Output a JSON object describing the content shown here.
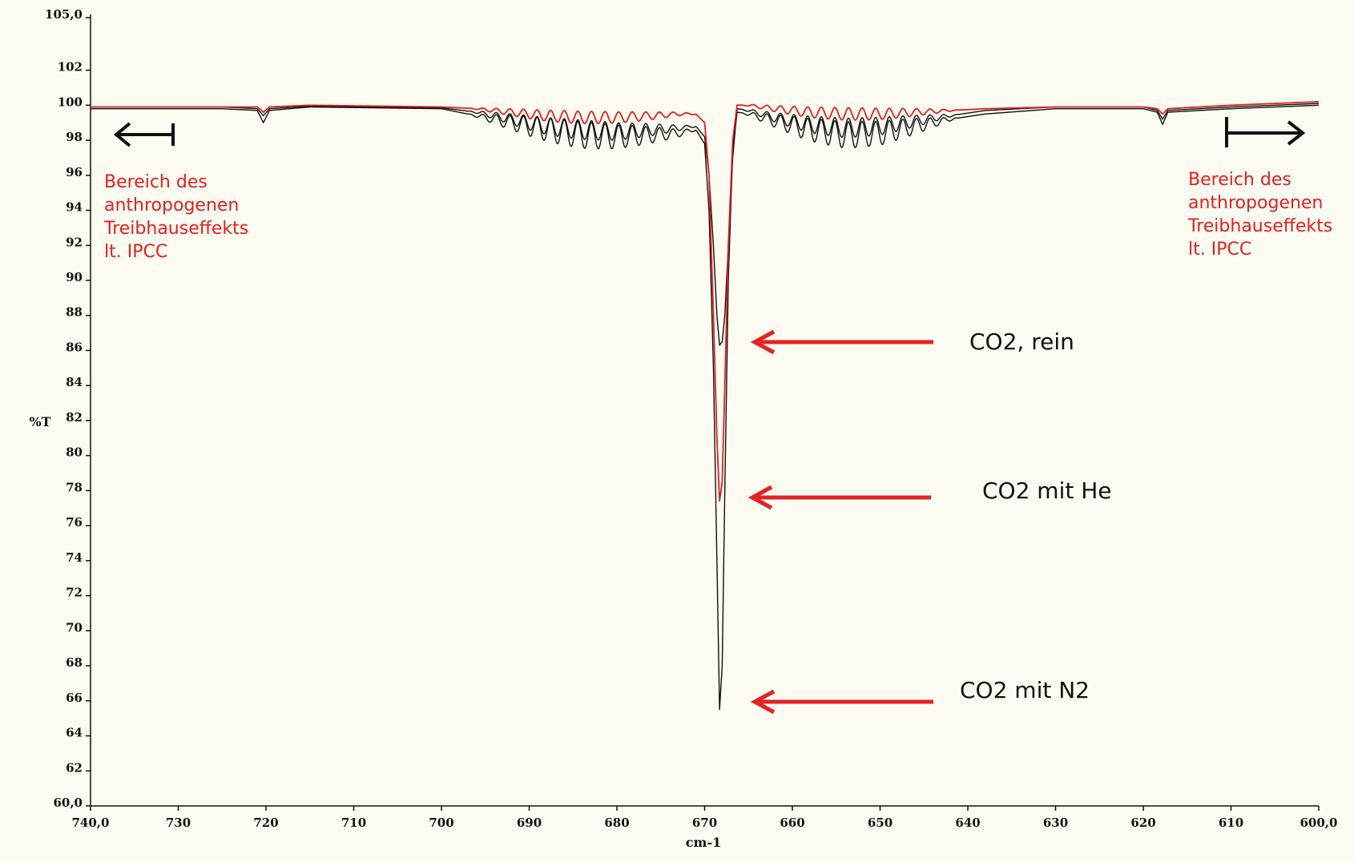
{
  "chart_data": {
    "type": "line",
    "title": "",
    "xlabel": "cm-1",
    "ylabel": "%T",
    "xlim": [
      740,
      600
    ],
    "ylim": [
      60,
      105
    ],
    "x_reversed": true,
    "grid": false,
    "x_ticks": [
      740,
      730,
      720,
      710,
      700,
      690,
      680,
      670,
      660,
      650,
      640,
      630,
      620,
      610,
      600
    ],
    "x_tick_labels": [
      "740,0",
      "730",
      "720",
      "710",
      "700",
      "690",
      "680",
      "670",
      "660",
      "650",
      "640",
      "630",
      "620",
      "610",
      "600,0"
    ],
    "y_ticks": [
      105,
      102,
      100,
      98,
      96,
      94,
      92,
      90,
      88,
      86,
      84,
      82,
      80,
      78,
      76,
      74,
      72,
      70,
      68,
      66,
      64,
      62,
      60
    ],
    "y_tick_labels": [
      "105,0",
      "102",
      "100",
      "98",
      "96",
      "94",
      "92",
      "90",
      "88",
      "86",
      "84",
      "82",
      "80",
      "78",
      "76",
      "74",
      "72",
      "70",
      "68",
      "66",
      "64",
      "62",
      "60,0"
    ],
    "series": [
      {
        "name": "CO2, rein",
        "color": "#111111",
        "points": [
          [
            740,
            99.9
          ],
          [
            725,
            99.9
          ],
          [
            721,
            99.8
          ],
          [
            720.3,
            99.4
          ],
          [
            719.6,
            99.8
          ],
          [
            715,
            99.95
          ],
          [
            700,
            99.85
          ],
          [
            696,
            99.6
          ],
          [
            692,
            99.2
          ],
          [
            688,
            98.8
          ],
          [
            684,
            98.6
          ],
          [
            680,
            98.5
          ],
          [
            676,
            98.6
          ],
          [
            673,
            98.7
          ],
          [
            671,
            98.8
          ],
          [
            670,
            98.2
          ],
          [
            669.5,
            96
          ],
          [
            669,
            92
          ],
          [
            668.6,
            88
          ],
          [
            668.3,
            86.3
          ],
          [
            668,
            86.5
          ],
          [
            667.7,
            88
          ],
          [
            667.3,
            92
          ],
          [
            666.8,
            97
          ],
          [
            666.3,
            99.8
          ],
          [
            665,
            99.7
          ],
          [
            662,
            99.3
          ],
          [
            658,
            98.9
          ],
          [
            654,
            98.7
          ],
          [
            650,
            98.8
          ],
          [
            646,
            99.1
          ],
          [
            642,
            99.4
          ],
          [
            638,
            99.7
          ],
          [
            630,
            99.9
          ],
          [
            620,
            99.9
          ],
          [
            618.4,
            99.7
          ],
          [
            617.8,
            99.2
          ],
          [
            617.2,
            99.7
          ],
          [
            610,
            99.9
          ],
          [
            600,
            100.1
          ]
        ]
      },
      {
        "name": "CO2 mit He",
        "color": "#e02020",
        "points": [
          [
            740,
            99.9
          ],
          [
            725,
            99.9
          ],
          [
            721,
            99.9
          ],
          [
            720.3,
            99.6
          ],
          [
            719.6,
            99.9
          ],
          [
            715,
            100.0
          ],
          [
            700,
            99.9
          ],
          [
            696,
            99.8
          ],
          [
            692,
            99.6
          ],
          [
            688,
            99.4
          ],
          [
            684,
            99.3
          ],
          [
            680,
            99.3
          ],
          [
            676,
            99.4
          ],
          [
            673,
            99.5
          ],
          [
            671,
            99.5
          ],
          [
            670,
            99.0
          ],
          [
            669.5,
            96
          ],
          [
            669,
            88
          ],
          [
            668.6,
            81
          ],
          [
            668.3,
            77.4
          ],
          [
            668,
            78.5
          ],
          [
            667.7,
            84
          ],
          [
            667.3,
            92
          ],
          [
            666.8,
            98
          ],
          [
            666.3,
            100.0
          ],
          [
            665,
            100.0
          ],
          [
            662,
            99.8
          ],
          [
            658,
            99.6
          ],
          [
            654,
            99.5
          ],
          [
            650,
            99.5
          ],
          [
            646,
            99.6
          ],
          [
            642,
            99.7
          ],
          [
            638,
            99.8
          ],
          [
            630,
            99.9
          ],
          [
            620,
            99.9
          ],
          [
            618.4,
            99.8
          ],
          [
            617.8,
            99.5
          ],
          [
            617.2,
            99.8
          ],
          [
            610,
            100.0
          ],
          [
            600,
            100.2
          ]
        ]
      },
      {
        "name": "CO2 mit N2",
        "color": "#111111",
        "points": [
          [
            740,
            99.8
          ],
          [
            725,
            99.8
          ],
          [
            721,
            99.7
          ],
          [
            720.3,
            99.0
          ],
          [
            719.6,
            99.7
          ],
          [
            715,
            99.9
          ],
          [
            700,
            99.8
          ],
          [
            696,
            99.4
          ],
          [
            692,
            99.0
          ],
          [
            688,
            98.6
          ],
          [
            684,
            98.3
          ],
          [
            680,
            98.2
          ],
          [
            676,
            98.3
          ],
          [
            673,
            98.4
          ],
          [
            671,
            98.6
          ],
          [
            670,
            97.8
          ],
          [
            669.5,
            94
          ],
          [
            669,
            85
          ],
          [
            668.6,
            74
          ],
          [
            668.3,
            65.5
          ],
          [
            668,
            68
          ],
          [
            667.7,
            78
          ],
          [
            667.3,
            90
          ],
          [
            666.8,
            97.5
          ],
          [
            666.3,
            99.6
          ],
          [
            665,
            99.5
          ],
          [
            662,
            99.1
          ],
          [
            658,
            98.6
          ],
          [
            654,
            98.3
          ],
          [
            650,
            98.4
          ],
          [
            646,
            98.8
          ],
          [
            642,
            99.2
          ],
          [
            638,
            99.5
          ],
          [
            630,
            99.8
          ],
          [
            620,
            99.8
          ],
          [
            618.4,
            99.6
          ],
          [
            617.8,
            98.9
          ],
          [
            617.2,
            99.6
          ],
          [
            610,
            99.8
          ],
          [
            600,
            100.0
          ]
        ]
      }
    ],
    "annotations": {
      "left_note": [
        "Bereich des",
        "anthropogenen",
        "Treibhauseffekts",
        "lt. IPCC"
      ],
      "right_note": [
        "Bereich des",
        "anthropogenen",
        "Treibhauseffekts",
        "lt. IPCC"
      ],
      "label_rein": "CO2, rein",
      "label_he": "CO2 mit He",
      "label_n2": "CO2 mit N2"
    }
  }
}
